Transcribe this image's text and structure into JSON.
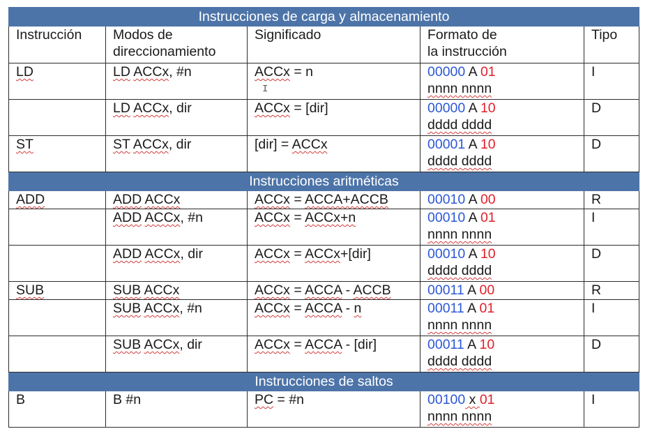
{
  "sections": {
    "load_store": "Instrucciones de carga y almacenamiento",
    "arith": "Instrucciones aritméticas",
    "jumps": "Instrucciones de saltos"
  },
  "header": {
    "instr": "Instrucción",
    "modes_l1": "Modos de",
    "modes_l2": "direccionamiento",
    "meaning": "Significado",
    "format_l1": "Formato de",
    "format_l2": "la instrucción",
    "type": "Tipo"
  },
  "rows": [
    {
      "instr": "LD",
      "mode": "LD ACCx, #n",
      "meaning": "ACCx = n",
      "fmt_op": "00000",
      "fmt_a": " A ",
      "fmt_code": "01",
      "fmt_l2": "nnnn nnnn",
      "type": "I"
    },
    {
      "instr": "",
      "mode": "LD ACCx, dir",
      "meaning": "ACCx = [dir]",
      "fmt_op": "00000",
      "fmt_a": " A ",
      "fmt_code": "10",
      "fmt_l2": "dddd dddd",
      "type": "D"
    },
    {
      "instr": "ST",
      "mode": "ST ACCx, dir",
      "meaning": "[dir] = ACCx",
      "fmt_op": "00001",
      "fmt_a": " A ",
      "fmt_code": "10",
      "fmt_l2": "dddd dddd",
      "type": "D"
    },
    {
      "instr": "ADD",
      "mode": "ADD ACCx",
      "meaning": "ACCx = ACCA+ACCB",
      "fmt_op": "00010",
      "fmt_a": " A ",
      "fmt_code": "00",
      "fmt_l2": "",
      "type": "R"
    },
    {
      "instr": "",
      "mode": "ADD ACCx, #n",
      "meaning": "ACCx = ACCx+n",
      "fmt_op": "00010",
      "fmt_a": " A ",
      "fmt_code": "01",
      "fmt_l2": "nnnn nnnn",
      "type": "I"
    },
    {
      "instr": "",
      "mode": "ADD ACCx, dir",
      "meaning": "ACCx = ACCx+[dir]",
      "fmt_op": "00010",
      "fmt_a": " A ",
      "fmt_code": "10",
      "fmt_l2": "dddd dddd",
      "type": "D"
    },
    {
      "instr": "SUB",
      "mode": "SUB ACCx",
      "meaning": "ACCx = ACCA - ACCB",
      "fmt_op": "00011",
      "fmt_a": " A ",
      "fmt_code": "00",
      "fmt_l2": "",
      "type": "R"
    },
    {
      "instr": "",
      "mode": "SUB ACCx, #n",
      "meaning": "ACCx = ACCA - n",
      "fmt_op": "00011",
      "fmt_a": " A ",
      "fmt_code": "01",
      "fmt_l2": "nnnn nnnn",
      "type": "I"
    },
    {
      "instr": "",
      "mode": "SUB ACCx, dir",
      "meaning": "ACCx = ACCA - [dir]",
      "fmt_op": "00011",
      "fmt_a": " A ",
      "fmt_code": "10",
      "fmt_l2": "dddd dddd",
      "type": "D"
    },
    {
      "instr": "B",
      "mode": "B #n",
      "meaning": "PC = #n",
      "fmt_op": "00100",
      "fmt_a": " x ",
      "fmt_code": "01",
      "fmt_l2": "nnnn nnnn",
      "type": "I"
    }
  ],
  "colors": {
    "section_bg": "#4d74a8",
    "opcode": "#2b57d6",
    "code": "#e0202a",
    "spell": "#d23a3a"
  },
  "icons": {
    "cursor": "text-cursor-icon"
  }
}
